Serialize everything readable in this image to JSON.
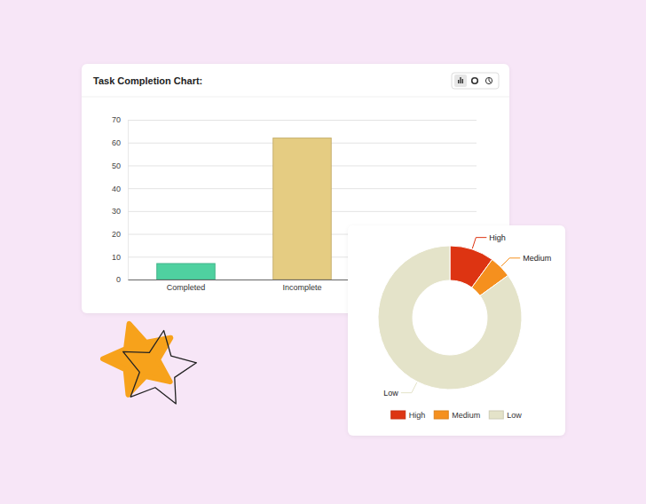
{
  "chart_data": [
    {
      "type": "bar",
      "title": "Task Completion Chart:",
      "categories": [
        "Completed",
        "Incomplete"
      ],
      "values": [
        7,
        62
      ],
      "colors": [
        "#4fd1a0",
        "#e5cc82"
      ],
      "ylim": [
        0,
        70
      ],
      "yticks": [
        0,
        10,
        20,
        30,
        40,
        50,
        60,
        70
      ],
      "grid": true
    },
    {
      "type": "donut",
      "categories": [
        "High",
        "Medium",
        "Low"
      ],
      "values": [
        10,
        5,
        85
      ],
      "colors": [
        "#dd3412",
        "#f5901e",
        "#e4e3c9"
      ],
      "legend": "bottom"
    }
  ]
}
